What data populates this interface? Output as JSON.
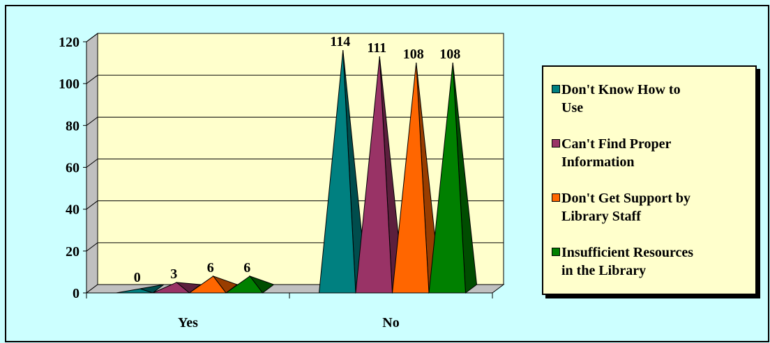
{
  "chart_data": {
    "type": "bar",
    "subtype": "3d-pyramid-clustered",
    "categories": [
      "Yes",
      "No"
    ],
    "series": [
      {
        "name": "Don't Know How to Use",
        "values": [
          0,
          114
        ],
        "color": "#008080"
      },
      {
        "name": "Can't Find Proper Information",
        "values": [
          3,
          111
        ],
        "color": "#993366"
      },
      {
        "name": "Don't Get Support by Library Staff",
        "values": [
          6,
          108
        ],
        "color": "#ff6600"
      },
      {
        "name": "Insufficient Resources in the Library",
        "values": [
          6,
          108
        ],
        "color": "#008000"
      }
    ],
    "yticks": [
      "0",
      "20",
      "40",
      "60",
      "80",
      "100",
      "120"
    ],
    "ylim": [
      0,
      120
    ],
    "grid": true,
    "legend_position": "right",
    "colors": {
      "background": "#ccffff",
      "plot_wall": "#ffffcc",
      "side_wall": "#c0c0c0",
      "floor": "#c0c0c0"
    }
  },
  "legend": {
    "items": [
      {
        "label_line1": "Don't Know How to",
        "label_line2": "Use",
        "color": "#008080"
      },
      {
        "label_line1": "Can't Find Proper",
        "label_line2": "Information",
        "color": "#993366"
      },
      {
        "label_line1": "Don't Get Support by",
        "label_line2": "Library Staff",
        "color": "#ff6600"
      },
      {
        "label_line1": "Insufficient Resources",
        "label_line2": "in the Library",
        "color": "#008000"
      }
    ]
  }
}
